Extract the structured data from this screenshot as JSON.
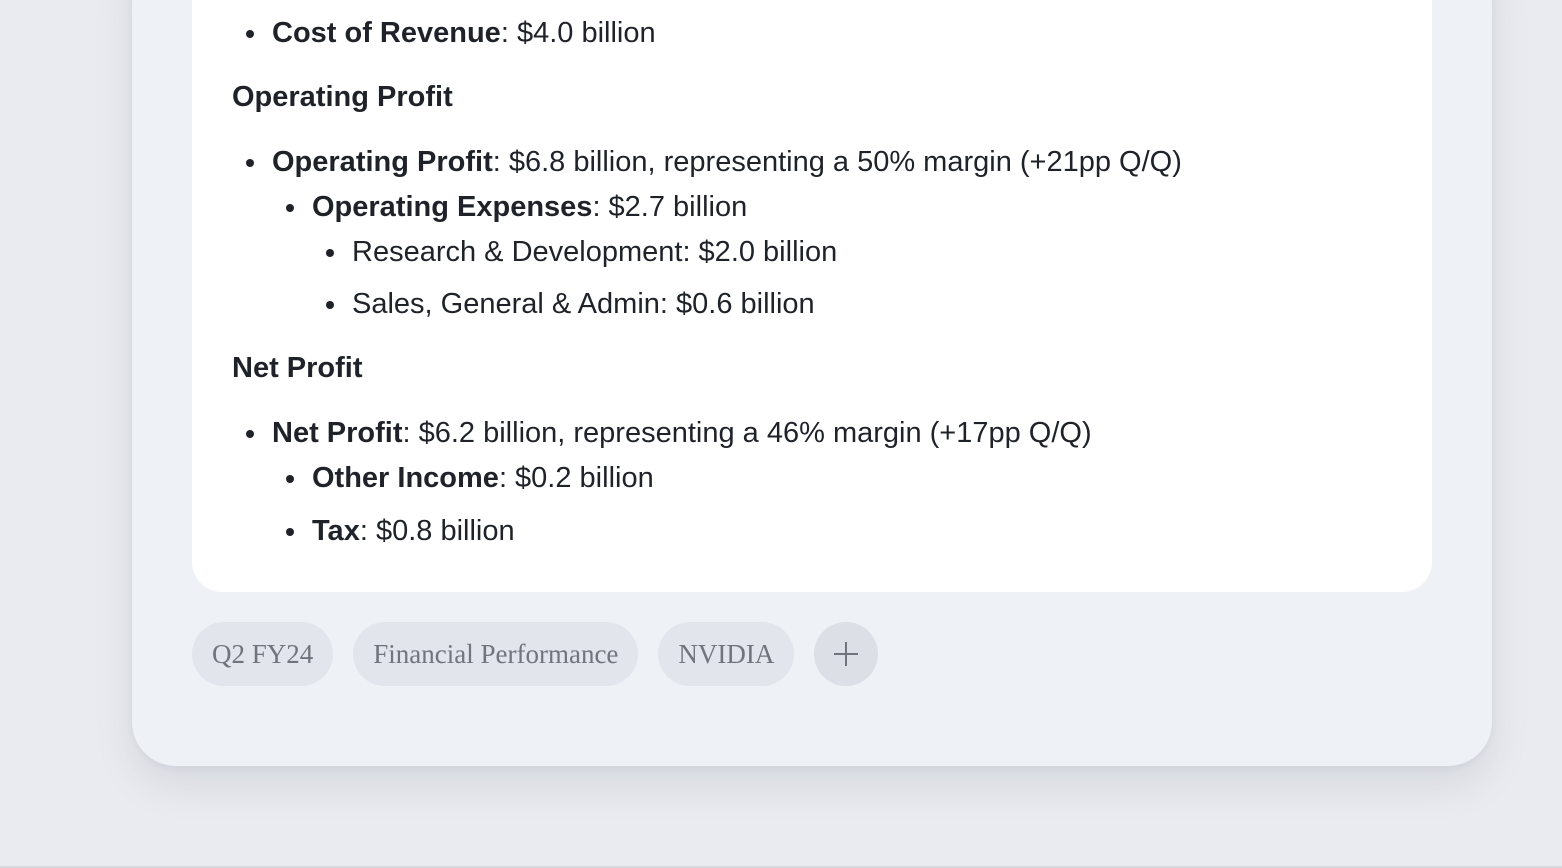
{
  "report": {
    "cost_of_revenue": {
      "label": "Cost of Revenue",
      "value": ": $4.0 billion"
    },
    "operating_profit_heading": "Operating Profit",
    "operating_profit": {
      "label": "Operating Profit",
      "value": ": $6.8 billion, representing a 50% margin (+21pp Q/Q)"
    },
    "operating_expenses": {
      "label": "Operating Expenses",
      "value": ": $2.7 billion"
    },
    "research_development": "Research & Development: $2.0 billion",
    "sales_general_admin": "Sales, General & Admin: $0.6 billion",
    "net_profit_heading": "Net Profit",
    "net_profit": {
      "label": "Net Profit",
      "value": ": $6.2 billion, representing a 46% margin (+17pp Q/Q)"
    },
    "other_income": {
      "label": "Other Income",
      "value": ": $0.2 billion"
    },
    "tax": {
      "label": "Tax",
      "value": ": $0.8 billion"
    }
  },
  "tags": [
    "Q2 FY24",
    "Financial Performance",
    "NVIDIA"
  ],
  "add_tag_icon": "plus-icon"
}
